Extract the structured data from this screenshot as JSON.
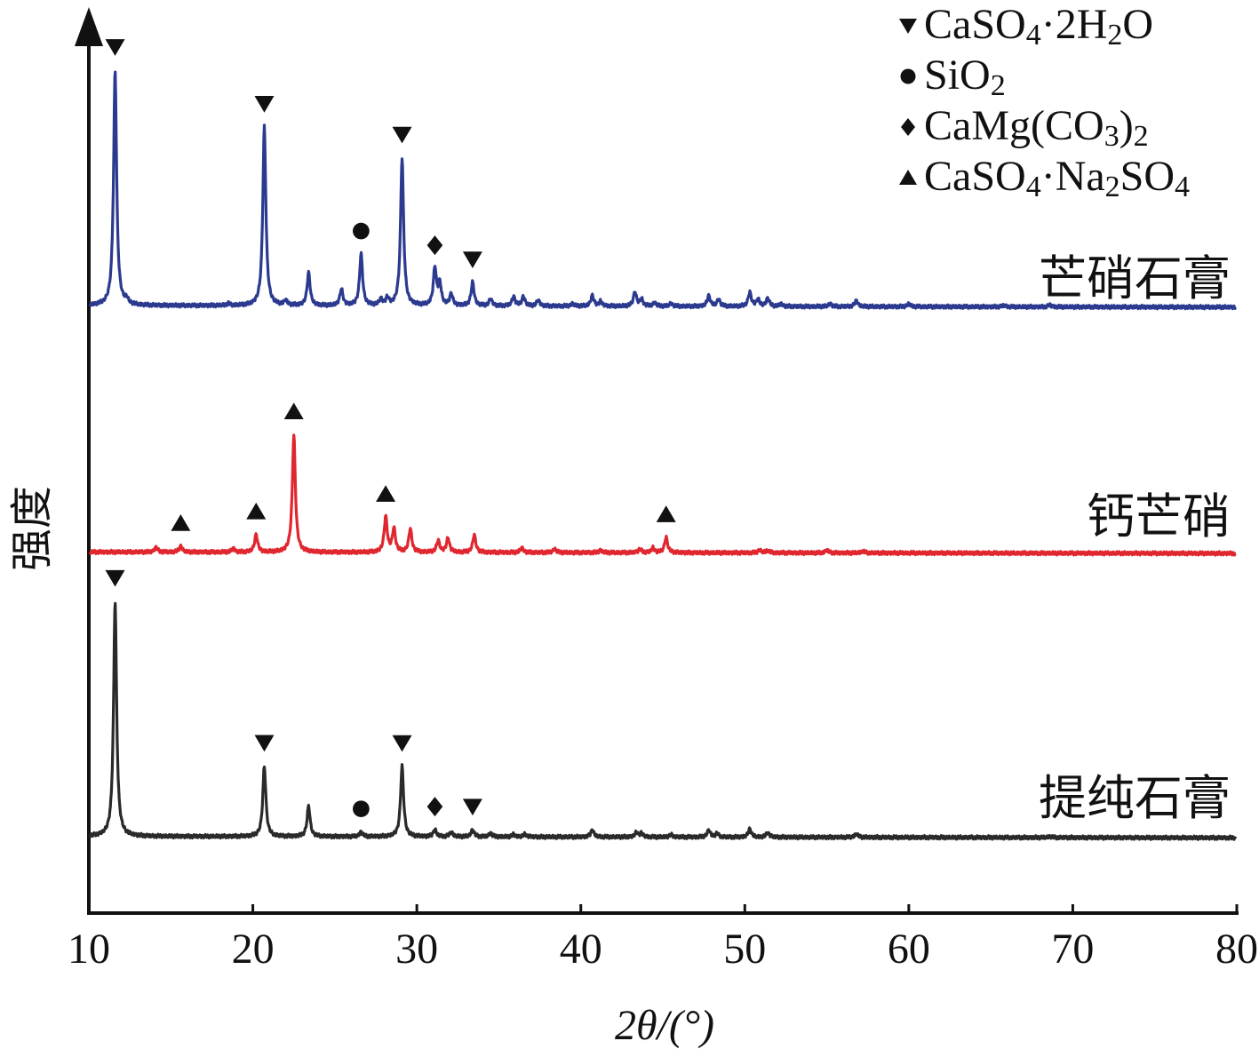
{
  "chart_data": {
    "type": "line",
    "xlabel": "2θ/(°)",
    "ylabel": "强度",
    "xlim": [
      10,
      80
    ],
    "x_ticks": [
      "10",
      "20",
      "30",
      "40",
      "50",
      "60",
      "70",
      "80"
    ],
    "grid": false,
    "y_axis_ticks": false,
    "legend_position": "top-right",
    "legend": [
      {
        "marker": "triangle-down",
        "label": "CaSO4·2H2O"
      },
      {
        "marker": "circle",
        "label": "SiO2"
      },
      {
        "marker": "diamond",
        "label": "CaMg(CO3)2"
      },
      {
        "marker": "triangle-up",
        "label": "CaSO4·Na2SO4"
      }
    ],
    "series": [
      {
        "name": "芒硝石膏",
        "color": "#2b3a8f",
        "baseline_start": 0.34,
        "baseline_end": 0.27,
        "peaks": [
          [
            11.6,
            10
          ],
          [
            12.3,
            0.2
          ],
          [
            18.5,
            0.08
          ],
          [
            20.7,
            7.6
          ],
          [
            22.0,
            0.2
          ],
          [
            23.4,
            1.4
          ],
          [
            25.4,
            0.7
          ],
          [
            26.6,
            2.2
          ],
          [
            27.8,
            0.25
          ],
          [
            28.2,
            0.3
          ],
          [
            29.1,
            6.3
          ],
          [
            31.1,
            1.6
          ],
          [
            31.4,
            0.9
          ],
          [
            32.1,
            0.5
          ],
          [
            33.4,
            1.0
          ],
          [
            34.5,
            0.3
          ],
          [
            35.9,
            0.4
          ],
          [
            36.5,
            0.4
          ],
          [
            37.4,
            0.25
          ],
          [
            39.5,
            0.1
          ],
          [
            40.7,
            0.45
          ],
          [
            41.2,
            0.2
          ],
          [
            43.3,
            0.6
          ],
          [
            43.7,
            0.3
          ],
          [
            44.5,
            0.15
          ],
          [
            45.5,
            0.12
          ],
          [
            47.8,
            0.45
          ],
          [
            48.4,
            0.3
          ],
          [
            50.3,
            0.6
          ],
          [
            50.8,
            0.3
          ],
          [
            51.4,
            0.35
          ],
          [
            52.2,
            0.1
          ],
          [
            55.2,
            0.12
          ],
          [
            56.8,
            0.25
          ],
          [
            60.0,
            0.12
          ],
          [
            65.8,
            0.06
          ],
          [
            68.6,
            0.08
          ]
        ],
        "markers": [
          [
            11.6,
            "triangle-down"
          ],
          [
            20.7,
            "triangle-down"
          ],
          [
            26.6,
            "circle"
          ],
          [
            29.1,
            "triangle-down"
          ],
          [
            31.1,
            "diamond"
          ],
          [
            33.4,
            "triangle-down"
          ]
        ]
      },
      {
        "name": "钙芒硝",
        "color": "#e0262e",
        "baseline_start": 0.17,
        "baseline_end": 0.11,
        "peaks": [
          [
            14.1,
            0.2
          ],
          [
            15.6,
            0.25
          ],
          [
            18.8,
            0.15
          ],
          [
            20.2,
            0.75
          ],
          [
            22.5,
            5.0
          ],
          [
            28.1,
            1.5
          ],
          [
            28.6,
            1.0
          ],
          [
            29.6,
            1.0
          ],
          [
            31.3,
            0.5
          ],
          [
            31.9,
            0.6
          ],
          [
            33.5,
            0.75
          ],
          [
            36.4,
            0.2
          ],
          [
            38.4,
            0.15
          ],
          [
            41.2,
            0.1
          ],
          [
            43.6,
            0.15
          ],
          [
            44.4,
            0.2
          ],
          [
            45.2,
            0.65
          ],
          [
            50.9,
            0.12
          ],
          [
            51.4,
            0.1
          ],
          [
            55.0,
            0.12
          ],
          [
            57.2,
            0.08
          ]
        ],
        "markers": [
          [
            15.6,
            "triangle-up"
          ],
          [
            20.2,
            "triangle-up"
          ],
          [
            22.5,
            "triangle-up"
          ],
          [
            28.1,
            "triangle-up"
          ],
          [
            45.2,
            "triangle-up"
          ]
        ]
      },
      {
        "name": "提纯石膏",
        "color": "#2a2a2a",
        "baseline_start": 0.24,
        "baseline_end": 0.18,
        "peaks": [
          [
            11.6,
            10
          ],
          [
            20.7,
            3.0
          ],
          [
            23.4,
            1.3
          ],
          [
            26.6,
            0.2
          ],
          [
            29.1,
            3.0
          ],
          [
            31.1,
            0.3
          ],
          [
            32.1,
            0.2
          ],
          [
            33.4,
            0.3
          ],
          [
            34.5,
            0.15
          ],
          [
            35.9,
            0.1
          ],
          [
            36.6,
            0.12
          ],
          [
            40.7,
            0.3
          ],
          [
            43.4,
            0.2
          ],
          [
            43.7,
            0.15
          ],
          [
            45.5,
            0.1
          ],
          [
            47.8,
            0.3
          ],
          [
            48.3,
            0.15
          ],
          [
            50.3,
            0.35
          ],
          [
            51.4,
            0.2
          ],
          [
            56.8,
            0.15
          ],
          [
            68.6,
            0.05
          ]
        ],
        "markers": [
          [
            11.6,
            "triangle-down"
          ],
          [
            20.7,
            "triangle-down"
          ],
          [
            26.6,
            "circle"
          ],
          [
            29.1,
            "triangle-down"
          ],
          [
            31.1,
            "diamond"
          ],
          [
            33.4,
            "triangle-down"
          ]
        ]
      }
    ]
  }
}
